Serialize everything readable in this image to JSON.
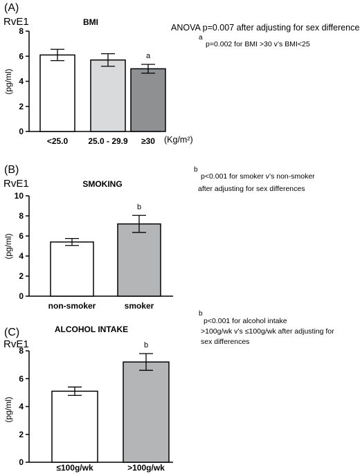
{
  "chart_data": [
    {
      "type": "bar",
      "panel_label": "(A)",
      "title": "BMI",
      "y_unit_name": "RvE1",
      "ylabel": "(pg/ml)",
      "ylim": [
        0,
        8
      ],
      "yticks": [
        0,
        2,
        4,
        6,
        8
      ],
      "categories": [
        "<25.0",
        "25.0 - 29.9",
        "≥30"
      ],
      "x_unit": "(Kg/m²)",
      "values": [
        6.1,
        5.7,
        5.0
      ],
      "errors": [
        0.45,
        0.5,
        0.35
      ],
      "bar_colors": [
        "#ffffff",
        "#d8dadb",
        "#8f9092"
      ],
      "bar_letters": [
        "",
        "",
        "a"
      ],
      "annotations": {
        "main": "ANOVA p=0.007 after adjusting for sex differences",
        "sup": "a",
        "lines": [
          "p=0.002 for BMI >30 v’s BMI<25"
        ]
      }
    },
    {
      "type": "bar",
      "panel_label": "(B)",
      "title": "SMOKING",
      "y_unit_name": "RvE1",
      "ylabel": "(pg/ml)",
      "ylim": [
        0,
        10
      ],
      "yticks": [
        0,
        2,
        4,
        6,
        8,
        10
      ],
      "categories": [
        "non-smoker",
        "smoker"
      ],
      "values": [
        5.4,
        7.2
      ],
      "errors": [
        0.35,
        0.85
      ],
      "bar_colors": [
        "#ffffff",
        "#b4b5b7"
      ],
      "bar_letters": [
        "",
        "b"
      ],
      "annotations": {
        "sup": "b",
        "lines": [
          "p<0.001 for smoker v’s non-smoker",
          "after adjusting for sex differences"
        ]
      }
    },
    {
      "type": "bar",
      "panel_label": "(C)",
      "title": "ALCOHOL INTAKE",
      "y_unit_name": "RvE1",
      "ylabel": "(pg/ml)",
      "ylim": [
        0,
        8
      ],
      "yticks": [
        0,
        2,
        4,
        6,
        8
      ],
      "categories": [
        "≤100g/wk",
        ">100g/wk"
      ],
      "values": [
        5.1,
        7.2
      ],
      "errors": [
        0.3,
        0.6
      ],
      "bar_colors": [
        "#ffffff",
        "#b4b5b7"
      ],
      "bar_letters": [
        "",
        "b"
      ],
      "annotations": {
        "sup": "b",
        "lines": [
          "p<0.001 for alcohol intake",
          ">100g/wk v’s ≤100g/wk after adjusting for",
          "sex differences"
        ]
      }
    }
  ]
}
